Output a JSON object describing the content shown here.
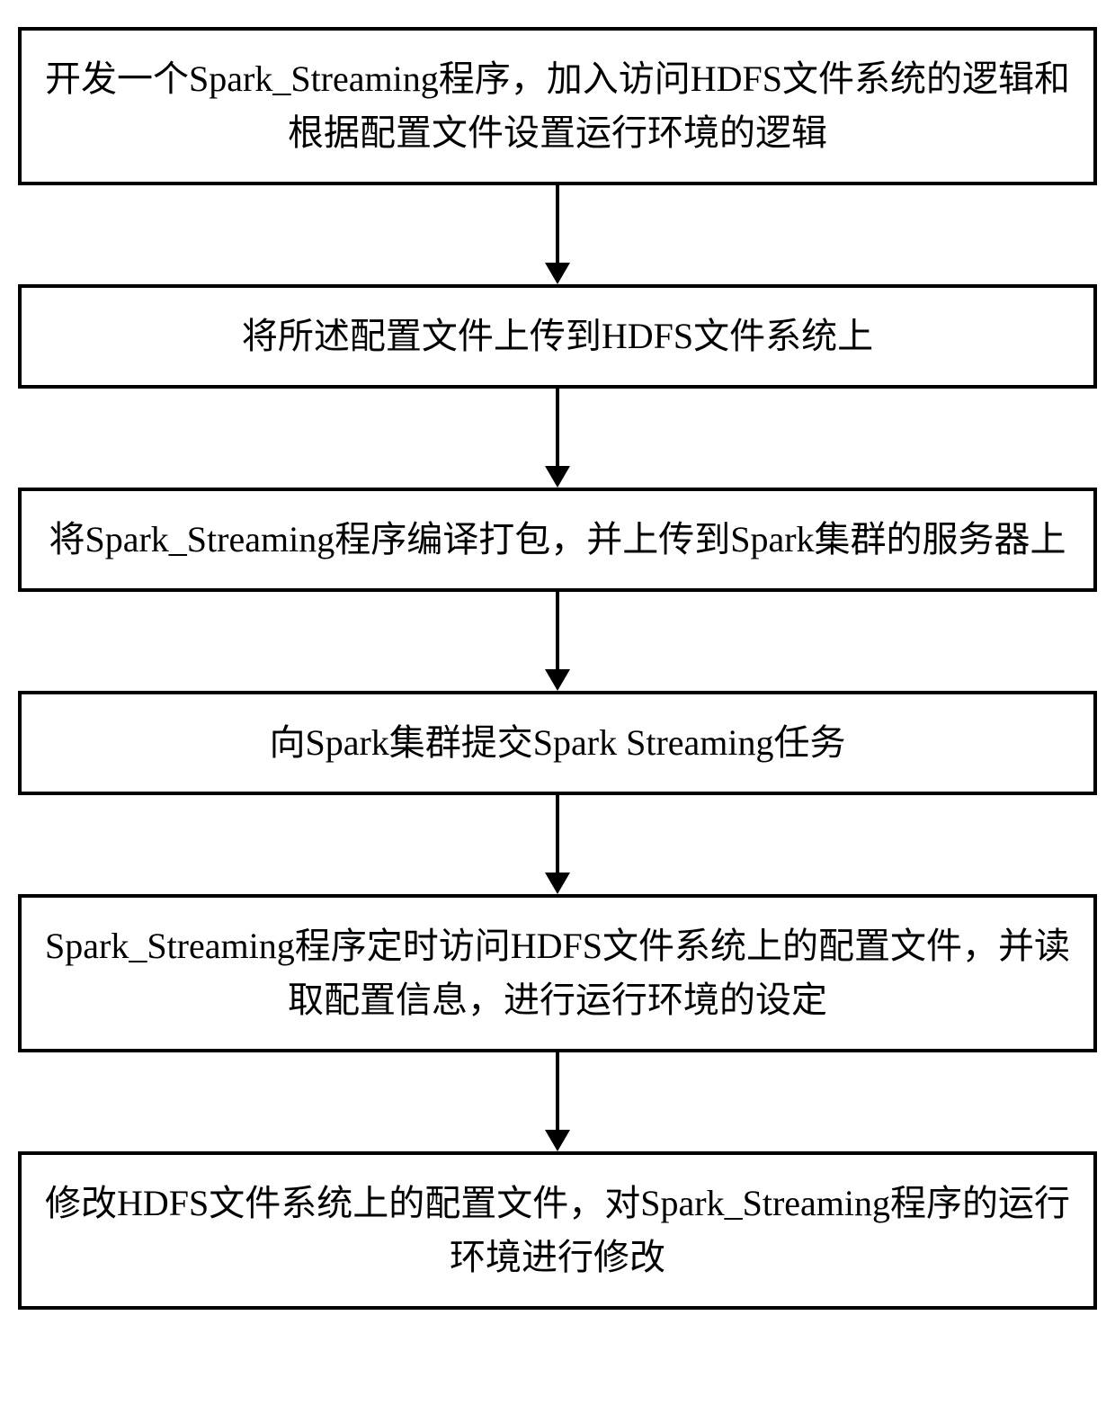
{
  "flowchart": {
    "type": "flowchart",
    "direction": "vertical",
    "background_color": "#ffffff",
    "node_border_color": "#000000",
    "node_border_width": 4,
    "node_background_color": "#ffffff",
    "arrow_color": "#000000",
    "arrow_line_width": 4,
    "arrow_head_width": 28,
    "arrow_head_height": 24,
    "arrow_gap_height": 110,
    "font_family": "SimSun",
    "font_size": 40,
    "font_color": "#000000",
    "line_height": 1.5,
    "nodes": [
      {
        "id": "step1",
        "label": "开发一个Spark_Streaming程序，加入访问HDFS文件系统的逻辑和根据配置文件设置运行环境的逻辑"
      },
      {
        "id": "step2",
        "label": "将所述配置文件上传到HDFS文件系统上"
      },
      {
        "id": "step3",
        "label": "将Spark_Streaming程序编译打包，并上传到Spark集群的服务器上"
      },
      {
        "id": "step4",
        "label": "向Spark集群提交Spark Streaming任务"
      },
      {
        "id": "step5",
        "label": "Spark_Streaming程序定时访问HDFS文件系统上的配置文件，并读取配置信息，进行运行环境的设定"
      },
      {
        "id": "step6",
        "label": "修改HDFS文件系统上的配置文件，对Spark_Streaming程序的运行环境进行修改"
      }
    ],
    "edges": [
      {
        "from": "step1",
        "to": "step2"
      },
      {
        "from": "step2",
        "to": "step3"
      },
      {
        "from": "step3",
        "to": "step4"
      },
      {
        "from": "step4",
        "to": "step5"
      },
      {
        "from": "step5",
        "to": "step6"
      }
    ]
  }
}
